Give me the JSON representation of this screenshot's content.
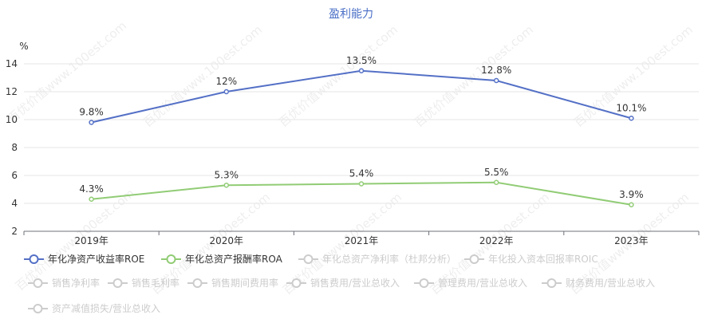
{
  "chart_data": {
    "type": "line",
    "title": "盈利能力",
    "ylabel": "%",
    "ylim": [
      2,
      14
    ],
    "yticks": [
      2,
      4,
      6,
      8,
      10,
      12,
      14
    ],
    "categories": [
      "2019年",
      "2020年",
      "2021年",
      "2022年",
      "2023年"
    ],
    "grid": true,
    "legend_position": "bottom",
    "series": [
      {
        "name": "年化净资产收益率ROE",
        "values": [
          9.8,
          12,
          13.5,
          12.8,
          10.1
        ],
        "labels": [
          "9.8%",
          "12%",
          "13.5%",
          "12.8%",
          "10.1%"
        ],
        "color": "#5470c6",
        "active": true
      },
      {
        "name": "年化总资产报酬率ROA",
        "values": [
          4.3,
          5.3,
          5.4,
          5.5,
          3.9
        ],
        "labels": [
          "4.3%",
          "5.3%",
          "5.4%",
          "5.5%",
          "3.9%"
        ],
        "color": "#91cc75",
        "active": true
      }
    ],
    "inactive_series": [
      "年化总资产净利率（杜邦分析）",
      "年化投入资本回报率ROIC",
      "销售净利率",
      "销售毛利率",
      "销售期间费用率",
      "销售费用/营业总收入",
      "管理费用/营业总收入",
      "财务费用/营业总收入",
      "资产减值损失/营业总收入"
    ],
    "inactive_color": "#cccccc"
  },
  "watermark": "百优价值www.100est.com"
}
